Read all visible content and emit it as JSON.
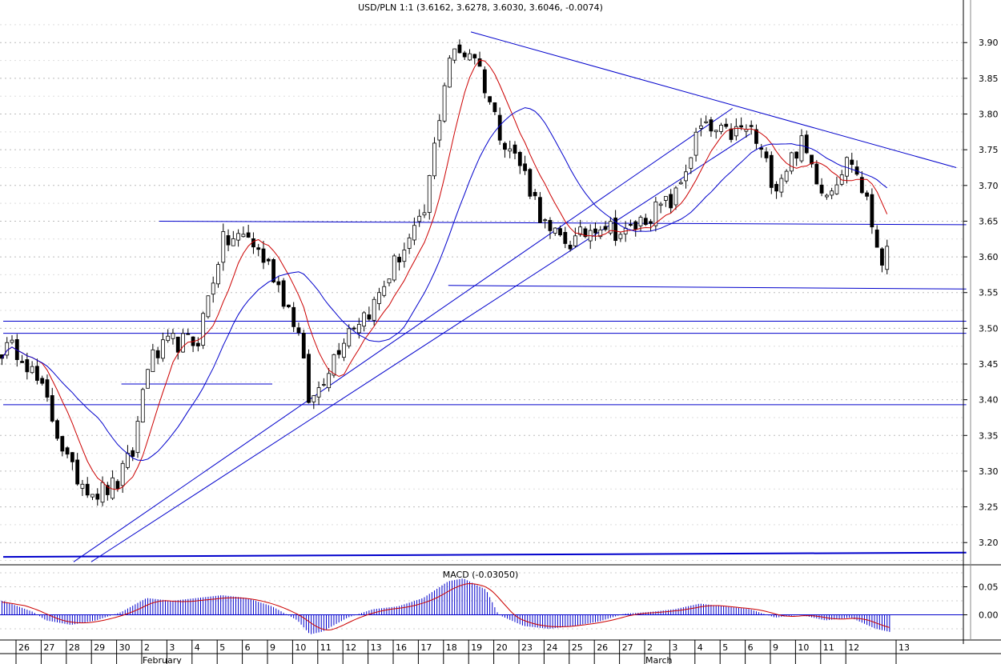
{
  "chart_data": [
    {
      "type": "candlestick",
      "title": "USD/PLN 1:1 (3.6162, 3.6278, 3.6030, 3.6046, -0.0074)",
      "ylim": [
        3.17,
        3.935
      ],
      "y_ticks": [
        "3.90",
        "3.85",
        "3.80",
        "3.75",
        "3.70",
        "3.65",
        "3.60",
        "3.55",
        "3.50",
        "3.45",
        "3.40",
        "3.35",
        "3.30",
        "3.25",
        "3.20"
      ],
      "grid": true,
      "close_anchors": [
        {
          "x": 0,
          "close": 3.47
        },
        {
          "x": 1,
          "close": 3.4
        },
        {
          "x": 2,
          "close": 3.3
        },
        {
          "x": 3,
          "close": 3.27
        },
        {
          "x": 3.8,
          "close": 3.28
        },
        {
          "x": 4.5,
          "close": 3.33
        },
        {
          "x": 5,
          "close": 3.45
        },
        {
          "x": 6,
          "close": 3.48
        },
        {
          "x": 7,
          "close": 3.48
        },
        {
          "x": 8,
          "close": 3.62
        },
        {
          "x": 9,
          "close": 3.63
        },
        {
          "x": 10,
          "close": 3.58
        },
        {
          "x": 11,
          "close": 3.5
        },
        {
          "x": 11.5,
          "close": 3.39
        },
        {
          "x": 12,
          "close": 3.43
        },
        {
          "x": 13,
          "close": 3.5
        },
        {
          "x": 14,
          "close": 3.53
        },
        {
          "x": 15,
          "close": 3.6
        },
        {
          "x": 16,
          "close": 3.65
        },
        {
          "x": 17,
          "close": 3.88
        },
        {
          "x": 18,
          "close": 3.89
        },
        {
          "x": 19,
          "close": 3.78
        },
        {
          "x": 20,
          "close": 3.72
        },
        {
          "x": 21,
          "close": 3.63
        },
        {
          "x": 22,
          "close": 3.62
        },
        {
          "x": 23,
          "close": 3.65
        },
        {
          "x": 24,
          "close": 3.63
        },
        {
          "x": 25,
          "close": 3.66
        },
        {
          "x": 26,
          "close": 3.68
        },
        {
          "x": 27,
          "close": 3.78
        },
        {
          "x": 28,
          "close": 3.77
        },
        {
          "x": 29,
          "close": 3.78
        },
        {
          "x": 30,
          "close": 3.7
        },
        {
          "x": 31,
          "close": 3.76
        },
        {
          "x": 32,
          "close": 3.69
        },
        {
          "x": 33,
          "close": 3.74
        },
        {
          "x": 33.6,
          "close": 3.68
        },
        {
          "x": 34.2,
          "close": 3.6
        },
        {
          "x": 34.6,
          "close": 3.6
        }
      ],
      "series": [
        {
          "name": "",
          "kind": "moving-average-short",
          "color": "#cc0000"
        },
        {
          "name": "",
          "kind": "moving-average-long",
          "color": "#0000cc"
        }
      ],
      "trendlines": [
        {
          "kind": "resistance",
          "from": {
            "x": 17.9,
            "y": 3.915
          },
          "to": {
            "x": 37.2,
            "y": 3.725
          }
        },
        {
          "kind": "support",
          "from": {
            "x": 2.1,
            "y": 3.173
          },
          "to": {
            "x": 28.3,
            "y": 3.808
          }
        },
        {
          "kind": "support",
          "from": {
            "x": 2.8,
            "y": 3.173
          },
          "to": {
            "x": 29.0,
            "y": 3.772
          }
        },
        {
          "kind": "horizontal",
          "from": {
            "x": 5.5,
            "y": 3.65
          },
          "to": {
            "x": 37.6,
            "y": 3.645
          }
        },
        {
          "kind": "horizontal",
          "from": {
            "x": 17.0,
            "y": 3.56
          },
          "to": {
            "x": 37.6,
            "y": 3.555
          }
        },
        {
          "kind": "horizontal",
          "from": {
            "x": -0.7,
            "y": 3.51
          },
          "to": {
            "x": 37.6,
            "y": 3.51
          }
        },
        {
          "kind": "horizontal",
          "from": {
            "x": -0.7,
            "y": 3.493
          },
          "to": {
            "x": 37.6,
            "y": 3.493
          }
        },
        {
          "kind": "horizontal",
          "from": {
            "x": -0.7,
            "y": 3.393
          },
          "to": {
            "x": 37.6,
            "y": 3.393
          }
        },
        {
          "kind": "horizontal",
          "from": {
            "x": 4.0,
            "y": 3.422
          },
          "to": {
            "x": 10.0,
            "y": 3.422
          }
        },
        {
          "kind": "horizontal",
          "from": {
            "x": -0.7,
            "y": 3.18
          },
          "to": {
            "x": 37.6,
            "y": 3.186
          }
        }
      ],
      "line_color": "#0000cc"
    },
    {
      "type": "bar",
      "title": "MACD (-0.03050)",
      "ylim": [
        -0.045,
        0.085
      ],
      "y_ticks": [
        "0.05",
        "0.00"
      ],
      "histogram_color": "#0000cc",
      "signal_color": "#cc0000",
      "histogram_anchors": [
        {
          "x": -0.7,
          "value": 0.025
        },
        {
          "x": 0.5,
          "value": 0.005
        },
        {
          "x": 1,
          "value": -0.01
        },
        {
          "x": 2,
          "value": -0.018
        },
        {
          "x": 3,
          "value": -0.01
        },
        {
          "x": 4,
          "value": 0.005
        },
        {
          "x": 5,
          "value": 0.03
        },
        {
          "x": 6,
          "value": 0.025
        },
        {
          "x": 7,
          "value": 0.03
        },
        {
          "x": 8,
          "value": 0.035
        },
        {
          "x": 9,
          "value": 0.03
        },
        {
          "x": 10,
          "value": 0.015
        },
        {
          "x": 11,
          "value": -0.01
        },
        {
          "x": 11.5,
          "value": -0.035
        },
        {
          "x": 12,
          "value": -0.03
        },
        {
          "x": 13,
          "value": -0.005
        },
        {
          "x": 14,
          "value": 0.01
        },
        {
          "x": 15,
          "value": 0.015
        },
        {
          "x": 16,
          "value": 0.03
        },
        {
          "x": 17,
          "value": 0.06
        },
        {
          "x": 17.6,
          "value": 0.065
        },
        {
          "x": 18.5,
          "value": 0.045
        },
        {
          "x": 19,
          "value": 0.0
        },
        {
          "x": 20,
          "value": -0.02
        },
        {
          "x": 21,
          "value": -0.025
        },
        {
          "x": 22,
          "value": -0.02
        },
        {
          "x": 23,
          "value": -0.012
        },
        {
          "x": 24,
          "value": 0.002
        },
        {
          "x": 25,
          "value": 0.005
        },
        {
          "x": 26,
          "value": 0.01
        },
        {
          "x": 27,
          "value": 0.02
        },
        {
          "x": 28,
          "value": 0.015
        },
        {
          "x": 29,
          "value": 0.01
        },
        {
          "x": 30,
          "value": -0.005
        },
        {
          "x": 31,
          "value": 0.0
        },
        {
          "x": 32,
          "value": -0.01
        },
        {
          "x": 33,
          "value": -0.005
        },
        {
          "x": 34,
          "value": -0.025
        },
        {
          "x": 34.6,
          "value": -0.031
        }
      ]
    }
  ],
  "x_axis": {
    "day_labels": [
      {
        "x": 0,
        "label": "26"
      },
      {
        "x": 1,
        "label": "27"
      },
      {
        "x": 2,
        "label": "28"
      },
      {
        "x": 3,
        "label": "29"
      },
      {
        "x": 4,
        "label": "30"
      },
      {
        "x": 5,
        "label": "2"
      },
      {
        "x": 6,
        "label": "3"
      },
      {
        "x": 7,
        "label": "4"
      },
      {
        "x": 8,
        "label": "5"
      },
      {
        "x": 9,
        "label": "6"
      },
      {
        "x": 10,
        "label": "9"
      },
      {
        "x": 11,
        "label": "10"
      },
      {
        "x": 12,
        "label": "11"
      },
      {
        "x": 13,
        "label": "12"
      },
      {
        "x": 14,
        "label": "13"
      },
      {
        "x": 15,
        "label": "16"
      },
      {
        "x": 16,
        "label": "17"
      },
      {
        "x": 17,
        "label": "18"
      },
      {
        "x": 18,
        "label": "19"
      },
      {
        "x": 19,
        "label": "20"
      },
      {
        "x": 20,
        "label": "23"
      },
      {
        "x": 21,
        "label": "24"
      },
      {
        "x": 22,
        "label": "25"
      },
      {
        "x": 23,
        "label": "26"
      },
      {
        "x": 24,
        "label": "27"
      },
      {
        "x": 25,
        "label": "2"
      },
      {
        "x": 26,
        "label": "3"
      },
      {
        "x": 27,
        "label": "4"
      },
      {
        "x": 28,
        "label": "5"
      },
      {
        "x": 29,
        "label": "6"
      },
      {
        "x": 30,
        "label": "9"
      },
      {
        "x": 31,
        "label": "10"
      },
      {
        "x": 32,
        "label": "11"
      },
      {
        "x": 33,
        "label": "12"
      },
      {
        "x": 35,
        "label": "13"
      }
    ],
    "month_labels": [
      {
        "x": 5,
        "label": "February"
      },
      {
        "x": 25,
        "label": "March"
      }
    ]
  }
}
